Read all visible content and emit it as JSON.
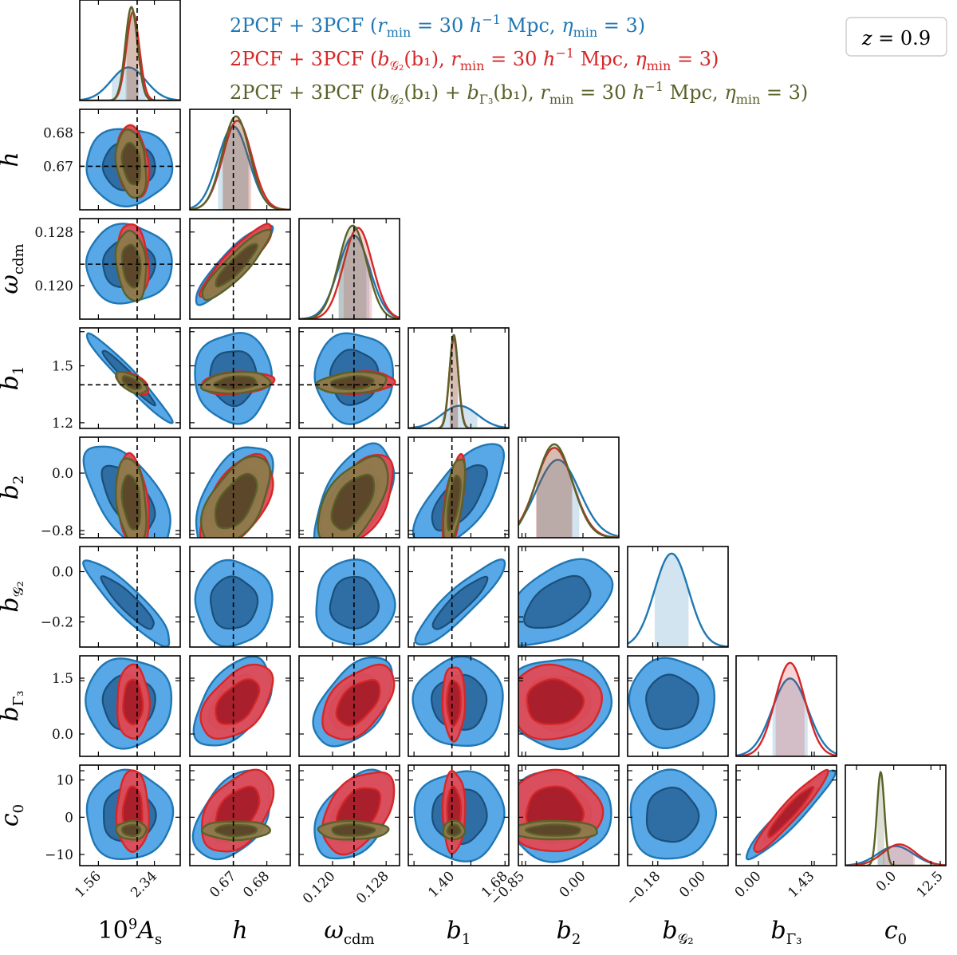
{
  "chart_data": {
    "type": "corner",
    "parameters": [
      {
        "name": "10^9 A_s",
        "label": "10",
        "label_sup": "9",
        "label_main": "A",
        "label_sub": "s",
        "range": [
          1.3,
          2.7
        ],
        "ticks": [
          1.56,
          2.34
        ],
        "tick_labels": [
          "1.56",
          "2.34"
        ],
        "truth": 2.1
      },
      {
        "name": "h",
        "label": "h",
        "label_sub": "",
        "range": [
          0.657,
          0.687
        ],
        "ticks": [
          0.67,
          0.68
        ],
        "tick_labels": [
          "0.67",
          "0.68"
        ],
        "truth": 0.67
      },
      {
        "name": "omega_cdm",
        "label": "ω",
        "label_sub": "cdm",
        "range": [
          0.115,
          0.13
        ],
        "ticks": [
          0.12,
          0.128
        ],
        "tick_labels": [
          "0.120",
          "0.128"
        ],
        "truth": 0.1232
      },
      {
        "name": "b_1",
        "label": "b",
        "label_sub": "1",
        "range": [
          1.17,
          1.7
        ],
        "ticks": [
          1.2,
          1.4,
          1.5,
          1.68
        ],
        "tick_labels": [
          "1.2",
          "1.40",
          "1.5",
          "1.68"
        ],
        "truth": 1.4
      },
      {
        "name": "b_2",
        "label": "b",
        "label_sub": "2",
        "range": [
          -0.9,
          0.5
        ],
        "ticks": [
          -0.85,
          -0.8,
          0.0
        ],
        "tick_labels": [
          "−0.85",
          "−0.8",
          "0.00"
        ],
        "truth": null
      },
      {
        "name": "b_G2",
        "label": "b",
        "label_sub": "𝒢₂",
        "range": [
          -0.3,
          0.1
        ],
        "ticks": [
          -0.2,
          -0.18,
          0.0
        ],
        "tick_labels": [
          "−0.2",
          "−0.18",
          "0.00"
        ],
        "truth": null
      },
      {
        "name": "b_Gamma3",
        "label": "b",
        "label_sub": "Γ₃",
        "range": [
          -0.6,
          2.1
        ],
        "ticks": [
          0.0,
          1.43,
          1.5
        ],
        "tick_labels": [
          "0.00",
          "1.43",
          "1.5"
        ],
        "truth": null
      },
      {
        "name": "c_0",
        "label": "c",
        "label_sub": "0",
        "range": [
          -13,
          14
        ],
        "ticks": [
          -10,
          0,
          10,
          12.5
        ],
        "tick_labels": [
          "−10",
          "0",
          "10",
          "12.5"
        ],
        "truth": null
      }
    ],
    "y_tick_labels": {
      "h": [
        "0.68",
        "0.67"
      ],
      "omega_cdm": [
        "0.128",
        "0.120"
      ],
      "b_1": [
        "1.5",
        "1.2"
      ],
      "b_2": [
        "0.0",
        "−0.8"
      ],
      "b_G2": [
        "0.0",
        "−0.2"
      ],
      "b_Gamma3": [
        "1.5",
        "0.0"
      ],
      "c_0": [
        "10",
        "0",
        "−10"
      ]
    },
    "x_tick_labels": {
      "10^9 A_s": [
        "1.56",
        "2.34"
      ],
      "h": [
        "0.67",
        "0.68"
      ],
      "omega_cdm": [
        "0.120",
        "0.128"
      ],
      "b_1": [
        "1.40",
        "1.68"
      ],
      "b_2": [
        "−0.85",
        "0.00"
      ],
      "b_G2": [
        "−0.18",
        "0.00"
      ],
      "b_Gamma3": [
        "0.00",
        "1.43"
      ],
      "c_0": [
        "0.0",
        "12.5"
      ]
    },
    "series": [
      {
        "name": "2PCF + 3PCF (r_min = 30 h^-1 Mpc, η_min = 3)",
        "legend_text": "2PCF + 3PCF (r",
        "legend_parts": [
          "2PCF + 3PCF (",
          "r",
          "min",
          " = 30 ",
          "h",
          "−1",
          " Mpc, ",
          "η",
          "min",
          " = 3)"
        ],
        "color": "#1f77b4",
        "fill_outer": "#4fa3e6",
        "fill_inner": "#2c6aa0",
        "free_params": [
          "10^9 A_s",
          "h",
          "omega_cdm",
          "b_1",
          "b_2",
          "b_G2",
          "b_Gamma3",
          "c_0"
        ],
        "mean": [
          1.98,
          0.67,
          0.1232,
          1.44,
          -0.35,
          -0.125,
          0.85,
          0.5
        ],
        "sigma": [
          0.24,
          0.0046,
          0.00235,
          0.095,
          0.3,
          0.068,
          0.48,
          4.8
        ]
      },
      {
        "name": "2PCF + 3PCF (b_G2(b1), r_min = 30 h^-1 Mpc, η_min = 3)",
        "legend_parts": [
          "2PCF + 3PCF (",
          "b",
          "𝒢₂",
          "(b₁), ",
          "r",
          "min",
          " = 30 ",
          "h",
          "−1",
          " Mpc, ",
          "η",
          "min",
          " = 3)"
        ],
        "color": "#d62728",
        "fill_outer": "#e24a55",
        "fill_inner": "#a61e2a",
        "free_params": [
          "10^9 A_s",
          "h",
          "omega_cdm",
          "b_1",
          "b_2",
          "b_Gamma3",
          "c_0"
        ],
        "mean": [
          2.04,
          0.6712,
          0.1238,
          1.41,
          -0.4,
          null,
          0.85,
          1.5
        ],
        "sigma": [
          0.09,
          0.0043,
          0.00215,
          0.024,
          0.26,
          null,
          0.4,
          4.4
        ]
      },
      {
        "name": "2PCF + 3PCF (b_G2(b1) + b_Γ3(b1), r_min = 30 h^-1 Mpc, η_min = 3)",
        "legend_parts": [
          "2PCF + 3PCF (",
          "b",
          "𝒢₂",
          "(b₁) + ",
          "b",
          "Γ₃",
          "(b₁), ",
          "r",
          "min",
          " = 30 ",
          "h",
          "−1",
          " Mpc, ",
          "η",
          "min",
          " = 3)"
        ],
        "color": "#5a6128",
        "fill_outer": "#8d7a4c",
        "fill_inner": "#5b4429",
        "free_params": [
          "10^9 A_s",
          "h",
          "omega_cdm",
          "b_1",
          "b_2",
          "c_0"
        ],
        "mean": [
          2.02,
          0.6708,
          0.123,
          1.41,
          -0.4,
          null,
          null,
          -3.5
        ],
        "sigma": [
          0.085,
          0.0041,
          0.0021,
          0.023,
          0.25,
          null,
          null,
          1.0
        ]
      }
    ],
    "correlations": {
      "0_1": [
        0.0,
        -0.25,
        -0.25
      ],
      "0_2": [
        0.0,
        -0.2,
        -0.2
      ],
      "0_3": [
        -0.97,
        -0.6,
        -0.6
      ],
      "0_4": [
        -0.6,
        -0.3,
        -0.3
      ],
      "0_5": [
        -0.9,
        null,
        null
      ],
      "0_6": [
        0.0,
        0.0,
        null
      ],
      "0_7": [
        0.0,
        0.0,
        0.0
      ],
      "1_2": [
        0.9,
        0.9,
        0.9
      ],
      "1_3": [
        0.0,
        0.2,
        0.2
      ],
      "1_4": [
        0.55,
        0.55,
        0.55
      ],
      "1_5": [
        0.0,
        null,
        null
      ],
      "1_6": [
        0.5,
        0.5,
        null
      ],
      "1_7": [
        0.45,
        0.45,
        0.0
      ],
      "2_3": [
        0.0,
        0.2,
        0.2
      ],
      "2_4": [
        0.55,
        0.55,
        0.55
      ],
      "2_5": [
        0.0,
        null,
        null
      ],
      "2_6": [
        0.5,
        0.5,
        null
      ],
      "2_7": [
        0.45,
        0.45,
        0.0
      ],
      "3_4": [
        0.7,
        0.6,
        0.6
      ],
      "3_5": [
        0.9,
        null,
        null
      ],
      "3_6": [
        0.0,
        0.0,
        null
      ],
      "3_7": [
        0.0,
        0.0,
        0.0
      ],
      "4_5": [
        0.5,
        null,
        null
      ],
      "4_6": [
        0.0,
        0.0,
        null
      ],
      "4_7": [
        0.0,
        0.0,
        0.0
      ],
      "5_6": [
        0.0,
        null,
        null
      ],
      "5_7": [
        0.0,
        null,
        null
      ],
      "6_7": [
        0.95,
        0.95,
        null
      ]
    },
    "redshift_label": "z = 0.9",
    "redshift_parts": [
      "z",
      " = 0.9"
    ],
    "legend_placement": "top-right",
    "grid": false
  }
}
